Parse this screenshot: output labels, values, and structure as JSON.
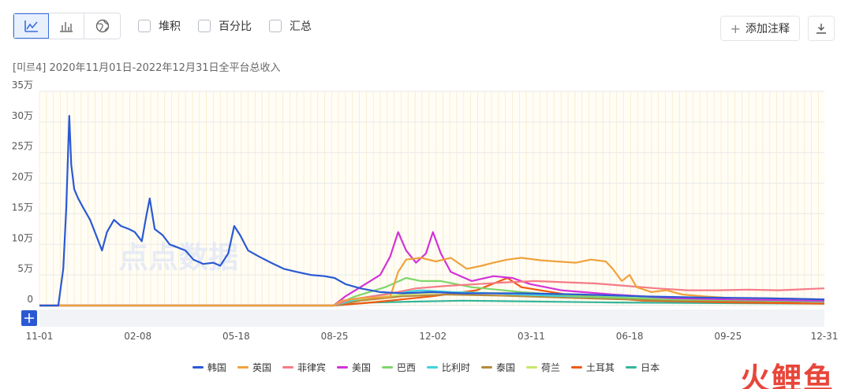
{
  "toolbar": {
    "views": [
      {
        "name": "line-chart-icon",
        "active": true
      },
      {
        "name": "bar-chart-icon",
        "active": false
      },
      {
        "name": "globe-icon",
        "active": false
      }
    ],
    "checks": [
      {
        "label": "堆积"
      },
      {
        "label": "百分比"
      },
      {
        "label": "汇总"
      }
    ],
    "annotate_label": "添加注释"
  },
  "subtitle": "[미르4] 2020年11月01日-2022年12月31日全平台总收入",
  "watermark": "点点数据",
  "logo": "火鲤鱼",
  "colors": {
    "韩国": "#2b59d4",
    "英国": "#f0a23c",
    "菲律宾": "#f57b86",
    "美国": "#d332d8",
    "巴西": "#7fd66b",
    "比利时": "#3fd2dd",
    "泰国": "#b58a3c",
    "荷兰": "#c7e86b",
    "土耳其": "#ef5a12",
    "日本": "#35b59b"
  },
  "chart_data": {
    "type": "line",
    "title": "[미르4] 2020年11月01日-2022年12月31日全平台总收入",
    "xlabel": "",
    "ylabel": "",
    "ylim": [
      0,
      350000
    ],
    "y_ticks": [
      {
        "v": 0,
        "label": "0"
      },
      {
        "v": 50000,
        "label": "5万"
      },
      {
        "v": 100000,
        "label": "10万"
      },
      {
        "v": 150000,
        "label": "15万"
      },
      {
        "v": 200000,
        "label": "20万"
      },
      {
        "v": 250000,
        "label": "25万"
      },
      {
        "v": 300000,
        "label": "30万"
      },
      {
        "v": 350000,
        "label": "35万"
      }
    ],
    "x_ticks": [
      {
        "date": "2020-11-01",
        "label": "11-01"
      },
      {
        "date": "2021-02-08",
        "label": "02-08"
      },
      {
        "date": "2021-05-18",
        "label": "05-18"
      },
      {
        "date": "2021-08-25",
        "label": "08-25"
      },
      {
        "date": "2021-12-02",
        "label": "12-02"
      },
      {
        "date": "2022-03-11",
        "label": "03-11"
      },
      {
        "date": "2022-06-18",
        "label": "06-18"
      },
      {
        "date": "2022-09-25",
        "label": "09-25"
      },
      {
        "date": "2022-12-31",
        "label": "12-31"
      }
    ],
    "x_range": [
      "2020-11-01",
      "2022-12-31"
    ],
    "grid": true,
    "legend_position": "bottom",
    "series": [
      {
        "name": "韩国",
        "points": [
          [
            "2020-11-01",
            0
          ],
          [
            "2020-11-20",
            0
          ],
          [
            "2020-11-25",
            60000
          ],
          [
            "2020-11-28",
            160000
          ],
          [
            "2020-12-01",
            310000
          ],
          [
            "2020-12-03",
            230000
          ],
          [
            "2020-12-06",
            190000
          ],
          [
            "2020-12-10",
            175000
          ],
          [
            "2020-12-15",
            160000
          ],
          [
            "2020-12-22",
            140000
          ],
          [
            "2020-12-28",
            115000
          ],
          [
            "2021-01-03",
            90000
          ],
          [
            "2021-01-08",
            120000
          ],
          [
            "2021-01-15",
            140000
          ],
          [
            "2021-01-22",
            130000
          ],
          [
            "2021-01-30",
            125000
          ],
          [
            "2021-02-05",
            120000
          ],
          [
            "2021-02-12",
            105000
          ],
          [
            "2021-02-17",
            150000
          ],
          [
            "2021-02-20",
            175000
          ],
          [
            "2021-02-25",
            125000
          ],
          [
            "2021-03-05",
            115000
          ],
          [
            "2021-03-12",
            100000
          ],
          [
            "2021-03-20",
            95000
          ],
          [
            "2021-03-28",
            90000
          ],
          [
            "2021-04-05",
            75000
          ],
          [
            "2021-04-15",
            68000
          ],
          [
            "2021-04-25",
            70000
          ],
          [
            "2021-05-02",
            65000
          ],
          [
            "2021-05-10",
            85000
          ],
          [
            "2021-05-16",
            130000
          ],
          [
            "2021-05-22",
            115000
          ],
          [
            "2021-05-30",
            90000
          ],
          [
            "2021-06-10",
            80000
          ],
          [
            "2021-06-22",
            70000
          ],
          [
            "2021-07-05",
            60000
          ],
          [
            "2021-07-18",
            55000
          ],
          [
            "2021-08-01",
            50000
          ],
          [
            "2021-08-15",
            48000
          ],
          [
            "2021-08-25",
            45000
          ],
          [
            "2021-09-05",
            35000
          ],
          [
            "2021-09-20",
            28000
          ],
          [
            "2021-10-10",
            22000
          ],
          [
            "2021-11-01",
            20000
          ],
          [
            "2021-12-01",
            22000
          ],
          [
            "2022-01-01",
            20000
          ],
          [
            "2022-03-01",
            20000
          ],
          [
            "2022-05-01",
            18000
          ],
          [
            "2022-07-01",
            15000
          ],
          [
            "2022-09-01",
            13000
          ],
          [
            "2022-11-01",
            12000
          ],
          [
            "2022-12-31",
            10000
          ]
        ]
      },
      {
        "name": "英国",
        "points": [
          [
            "2020-11-01",
            0
          ],
          [
            "2021-08-24",
            0
          ],
          [
            "2021-09-01",
            8000
          ],
          [
            "2021-09-20",
            12000
          ],
          [
            "2021-10-20",
            14000
          ],
          [
            "2021-10-28",
            55000
          ],
          [
            "2021-11-05",
            75000
          ],
          [
            "2021-11-20",
            78000
          ],
          [
            "2021-12-05",
            72000
          ],
          [
            "2021-12-20",
            78000
          ],
          [
            "2022-01-05",
            60000
          ],
          [
            "2022-01-20",
            65000
          ],
          [
            "2022-02-01",
            70000
          ],
          [
            "2022-02-15",
            75000
          ],
          [
            "2022-03-01",
            78000
          ],
          [
            "2022-03-20",
            74000
          ],
          [
            "2022-04-05",
            72000
          ],
          [
            "2022-04-25",
            70000
          ],
          [
            "2022-05-10",
            75000
          ],
          [
            "2022-05-25",
            72000
          ],
          [
            "2022-06-01",
            60000
          ],
          [
            "2022-06-10",
            40000
          ],
          [
            "2022-06-18",
            50000
          ],
          [
            "2022-06-25",
            30000
          ],
          [
            "2022-07-10",
            22000
          ],
          [
            "2022-07-25",
            25000
          ],
          [
            "2022-08-10",
            18000
          ],
          [
            "2022-09-01",
            15000
          ],
          [
            "2022-10-01",
            12000
          ],
          [
            "2022-11-01",
            12000
          ],
          [
            "2022-12-31",
            10000
          ]
        ]
      },
      {
        "name": "菲律宾",
        "points": [
          [
            "2020-11-01",
            0
          ],
          [
            "2021-08-24",
            0
          ],
          [
            "2021-09-10",
            10000
          ],
          [
            "2021-10-15",
            18000
          ],
          [
            "2021-11-15",
            28000
          ],
          [
            "2021-12-15",
            32000
          ],
          [
            "2022-01-15",
            35000
          ],
          [
            "2022-02-15",
            38000
          ],
          [
            "2022-03-15",
            40000
          ],
          [
            "2022-04-15",
            38000
          ],
          [
            "2022-05-15",
            36000
          ],
          [
            "2022-06-15",
            32000
          ],
          [
            "2022-07-15",
            28000
          ],
          [
            "2022-08-15",
            25000
          ],
          [
            "2022-09-15",
            25000
          ],
          [
            "2022-10-15",
            26000
          ],
          [
            "2022-11-15",
            25000
          ],
          [
            "2022-12-31",
            28000
          ]
        ]
      },
      {
        "name": "美国",
        "points": [
          [
            "2020-11-01",
            0
          ],
          [
            "2021-08-24",
            0
          ],
          [
            "2021-09-05",
            15000
          ],
          [
            "2021-09-25",
            35000
          ],
          [
            "2021-10-10",
            50000
          ],
          [
            "2021-10-20",
            80000
          ],
          [
            "2021-10-28",
            120000
          ],
          [
            "2021-11-05",
            90000
          ],
          [
            "2021-11-15",
            70000
          ],
          [
            "2021-11-25",
            85000
          ],
          [
            "2021-12-02",
            120000
          ],
          [
            "2021-12-10",
            85000
          ],
          [
            "2021-12-20",
            55000
          ],
          [
            "2022-01-10",
            40000
          ],
          [
            "2022-02-01",
            48000
          ],
          [
            "2022-02-20",
            45000
          ],
          [
            "2022-03-10",
            35000
          ],
          [
            "2022-04-10",
            25000
          ],
          [
            "2022-06-01",
            18000
          ],
          [
            "2022-08-01",
            12000
          ],
          [
            "2022-10-01",
            10000
          ],
          [
            "2022-12-31",
            8000
          ]
        ]
      },
      {
        "name": "巴西",
        "points": [
          [
            "2020-11-01",
            0
          ],
          [
            "2021-08-24",
            0
          ],
          [
            "2021-09-15",
            15000
          ],
          [
            "2021-10-15",
            30000
          ],
          [
            "2021-11-05",
            45000
          ],
          [
            "2021-11-20",
            40000
          ],
          [
            "2021-12-10",
            40000
          ],
          [
            "2022-01-10",
            30000
          ],
          [
            "2022-03-01",
            22000
          ],
          [
            "2022-05-01",
            15000
          ],
          [
            "2022-08-01",
            10000
          ],
          [
            "2022-12-31",
            8000
          ]
        ]
      },
      {
        "name": "比利时",
        "points": [
          [
            "2020-11-01",
            0
          ],
          [
            "2021-08-24",
            0
          ],
          [
            "2021-09-20",
            12000
          ],
          [
            "2021-10-20",
            20000
          ],
          [
            "2021-11-20",
            25000
          ],
          [
            "2021-12-20",
            22000
          ],
          [
            "2022-02-01",
            20000
          ],
          [
            "2022-04-01",
            16000
          ],
          [
            "2022-07-01",
            12000
          ],
          [
            "2022-10-01",
            9000
          ],
          [
            "2022-12-31",
            7000
          ]
        ]
      },
      {
        "name": "泰国",
        "points": [
          [
            "2020-11-01",
            0
          ],
          [
            "2021-08-24",
            0
          ],
          [
            "2021-09-20",
            8000
          ],
          [
            "2021-11-01",
            15000
          ],
          [
            "2021-12-15",
            18000
          ],
          [
            "2022-02-15",
            16000
          ],
          [
            "2022-05-01",
            12000
          ],
          [
            "2022-08-01",
            8000
          ],
          [
            "2022-12-31",
            6000
          ]
        ]
      },
      {
        "name": "荷兰",
        "points": [
          [
            "2020-11-01",
            0
          ],
          [
            "2021-08-24",
            0
          ],
          [
            "2021-09-20",
            10000
          ],
          [
            "2021-11-01",
            18000
          ],
          [
            "2021-12-15",
            22000
          ],
          [
            "2022-02-15",
            20000
          ],
          [
            "2022-05-01",
            14000
          ],
          [
            "2022-08-01",
            10000
          ],
          [
            "2022-12-31",
            8000
          ]
        ]
      },
      {
        "name": "土耳其",
        "points": [
          [
            "2020-11-01",
            0
          ],
          [
            "2021-08-24",
            0
          ],
          [
            "2021-10-01",
            5000
          ],
          [
            "2021-12-01",
            15000
          ],
          [
            "2022-01-15",
            25000
          ],
          [
            "2022-02-15",
            45000
          ],
          [
            "2022-03-01",
            30000
          ],
          [
            "2022-04-15",
            18000
          ],
          [
            "2022-07-01",
            8000
          ],
          [
            "2022-10-01",
            5000
          ],
          [
            "2022-12-31",
            3000
          ]
        ]
      },
      {
        "name": "日本",
        "points": [
          [
            "2020-11-01",
            0
          ],
          [
            "2021-08-24",
            0
          ],
          [
            "2021-10-01",
            5000
          ],
          [
            "2022-01-01",
            8000
          ],
          [
            "2022-06-01",
            5000
          ],
          [
            "2022-12-31",
            3000
          ]
        ]
      }
    ]
  }
}
